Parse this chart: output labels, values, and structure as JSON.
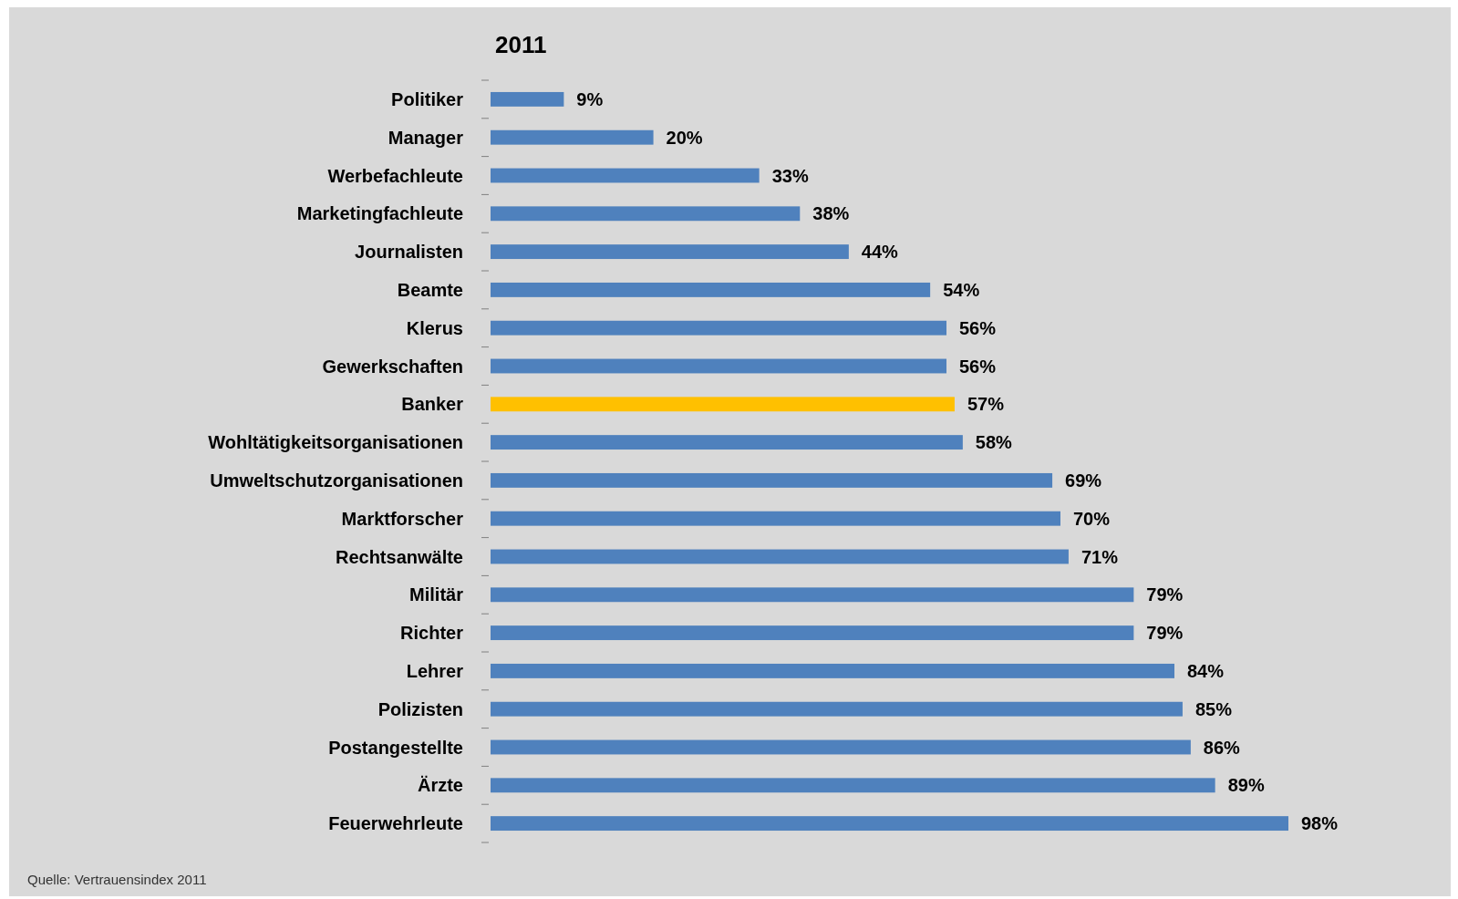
{
  "chart_data": {
    "type": "bar",
    "orientation": "horizontal",
    "title": "2011",
    "categories": [
      "Politiker",
      "Manager",
      "Werbefachleute",
      "Marketingfachleute",
      "Journalisten",
      "Beamte",
      "Klerus",
      "Gewerkschaften",
      "Banker",
      "Wohltätigkeitsorganisationen",
      "Umweltschutzorganisationen",
      "Marktforscher",
      "Rechtsanwälte",
      "Militär",
      "Richter",
      "Lehrer",
      "Polizisten",
      "Postangestellte",
      "Ärzte",
      "Feuerwehrleute"
    ],
    "values": [
      9,
      20,
      33,
      38,
      44,
      54,
      56,
      56,
      57,
      58,
      69,
      70,
      71,
      79,
      79,
      84,
      85,
      86,
      89,
      98
    ],
    "colors": [
      "#4f81bd",
      "#4f81bd",
      "#4f81bd",
      "#4f81bd",
      "#4f81bd",
      "#4f81bd",
      "#4f81bd",
      "#4f81bd",
      "#ffc000",
      "#4f81bd",
      "#4f81bd",
      "#4f81bd",
      "#4f81bd",
      "#4f81bd",
      "#4f81bd",
      "#4f81bd",
      "#4f81bd",
      "#4f81bd",
      "#4f81bd",
      "#4f81bd"
    ],
    "value_labels": [
      "9%",
      "20%",
      "33%",
      "38%",
      "44%",
      "54%",
      "56%",
      "56%",
      "57%",
      "58%",
      "69%",
      "70%",
      "71%",
      "79%",
      "79%",
      "84%",
      "85%",
      "86%",
      "89%",
      "98%"
    ],
    "annotations": [
      "Quelle: Vertrauensindex 2011"
    ]
  }
}
